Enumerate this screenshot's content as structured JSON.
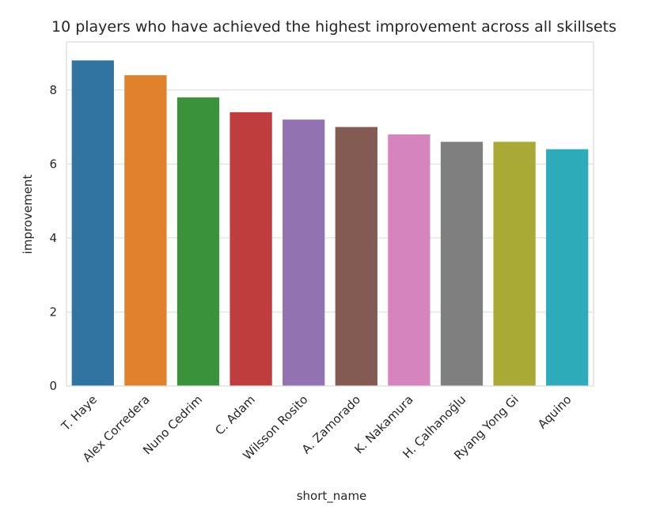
{
  "chart_data": {
    "type": "bar",
    "title": "10 players who have achieved the highest improvement across all skillsets",
    "xlabel": "short_name",
    "ylabel": "improvement",
    "categories": [
      "T. Haye",
      "Alex Corredera",
      "Nuno Cedrim",
      "C. Adam",
      "Wilsson Rosito",
      "A. Zamorado",
      "K. Nakamura",
      "H. Çalhanoğlu",
      "Ryang Yong Gi",
      "Aquino"
    ],
    "values": [
      8.8,
      8.4,
      7.8,
      7.4,
      7.2,
      7.0,
      6.8,
      6.6,
      6.6,
      6.4
    ],
    "colors": [
      "#3274a1",
      "#e1812c",
      "#3a923a",
      "#c03d3e",
      "#9372b2",
      "#845b53",
      "#d684bd",
      "#7f7f7f",
      "#a9aa35",
      "#2eabb8"
    ],
    "ylim": [
      0,
      9.3
    ],
    "yticks": [
      0,
      2,
      4,
      6,
      8
    ],
    "grid": true,
    "grid_axis": "y",
    "grid_color": "#dcdcdc",
    "spine_color": "#d9d9d9"
  }
}
